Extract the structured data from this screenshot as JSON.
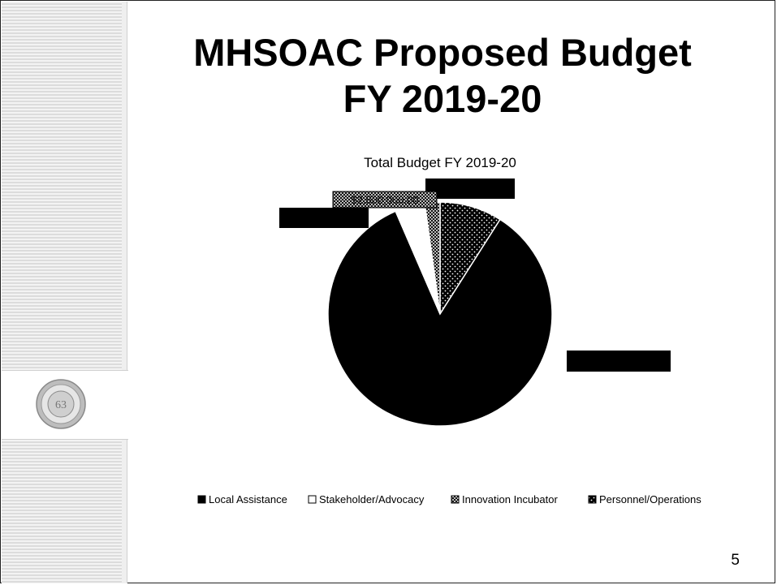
{
  "slide": {
    "title_line1": "MHSOAC Proposed Budget",
    "title_line2": "FY 2019-20",
    "page_number": "5"
  },
  "chart_data": {
    "type": "pie",
    "title": "Total Budget FY 2019-20",
    "legend_position": "bottom",
    "categories": [
      "Local Assistance",
      "Stakeholder/Advocacy",
      "Innovation Incubator",
      "Personnel/Operations"
    ],
    "values": [
      84.5,
      4.3,
      2.2,
      9.0
    ],
    "data_labels": [
      "",
      "",
      "$2,500,000.00",
      ""
    ],
    "patterns": [
      "solid-black",
      "white",
      "crosshatch",
      "dotted-black"
    ]
  }
}
